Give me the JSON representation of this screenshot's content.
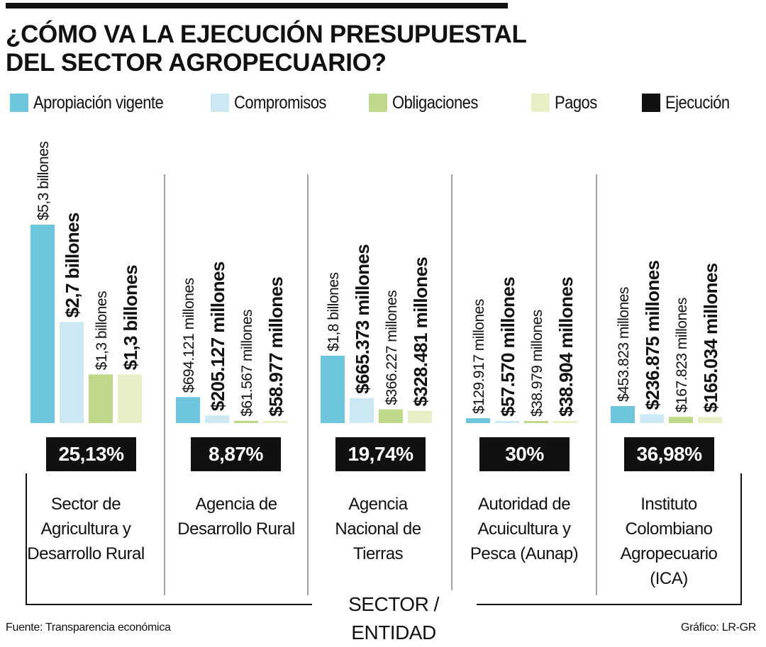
{
  "header": {
    "title_line1": "¿CÓMO VA LA EJECUCIÓN PRESUPUESTAL",
    "title_line2": "DEL SECTOR AGROPECUARIO?"
  },
  "legend": [
    {
      "label": "Apropiación vigente",
      "color": "#6ec6dd"
    },
    {
      "label": "Compromisos",
      "color": "#cce8f3"
    },
    {
      "label": "Obligaciones",
      "color": "#bfd98a"
    },
    {
      "label": "Pagos",
      "color": "#e7efc6"
    },
    {
      "label": "Ejecución",
      "color": "#111111"
    }
  ],
  "chart_data": {
    "type": "bar",
    "xlabel": "SECTOR / ENTIDAD",
    "series_names": [
      "Apropiación vigente",
      "Compromisos",
      "Obligaciones",
      "Pagos"
    ],
    "groups": [
      {
        "category": "Sector de Agricultura y Desarrollo Rural",
        "category_lines": [
          "Sector de",
          "Agricultura y",
          "Desarrollo Rural"
        ],
        "values_millones": [
          5300000,
          2700000,
          1300000,
          1300000
        ],
        "labels": [
          "$5,3 billones",
          "$2,7 billones",
          "$1,3 billones",
          "$1,3 billones"
        ],
        "ejecucion": "25,13%"
      },
      {
        "category": "Agencia de Desarrollo Rural",
        "category_lines": [
          "Agencia de",
          "Desarrollo Rural"
        ],
        "values_millones": [
          694121,
          205127,
          61567,
          58977
        ],
        "labels": [
          "$694.121 millones",
          "$205.127 millones",
          "$61.567 millones",
          "$58.977 millones"
        ],
        "ejecucion": "8,87%"
      },
      {
        "category": "Agencia Nacional de Tierras",
        "category_lines": [
          "Agencia",
          "Nacional de",
          "Tierras"
        ],
        "values_millones": [
          1800000,
          665373,
          366227,
          328481
        ],
        "labels": [
          "$1,8 billones",
          "$665.373 millones",
          "$366.227 millones",
          "$328.481 millones"
        ],
        "ejecucion": "19,74%"
      },
      {
        "category": "Autoridad de Acuicultura y Pesca (Aunap)",
        "category_lines": [
          "Autoridad de",
          "Acuicultura y",
          "Pesca (Aunap)"
        ],
        "values_millones": [
          129917,
          57570,
          38979,
          38904
        ],
        "labels": [
          "$129.917 millones",
          "$57.570 millones",
          "$38.979 millones",
          "$38.904 millones"
        ],
        "ejecucion": "30%"
      },
      {
        "category": "Instituto Colombiano Agropecuario (ICA)",
        "category_lines": [
          "Instituto",
          "Colombiano",
          "Agropecuario",
          "(ICA)"
        ],
        "values_millones": [
          453823,
          236875,
          167823,
          165034
        ],
        "labels": [
          "$453.823 millones",
          "$236.875 millones",
          "$167.823 millones",
          "$165.034 millones"
        ],
        "ejecucion": "36,98%"
      }
    ]
  },
  "footer": {
    "source": "Fuente: Transparencia económica",
    "credit": "Gráfico: LR-GR"
  }
}
